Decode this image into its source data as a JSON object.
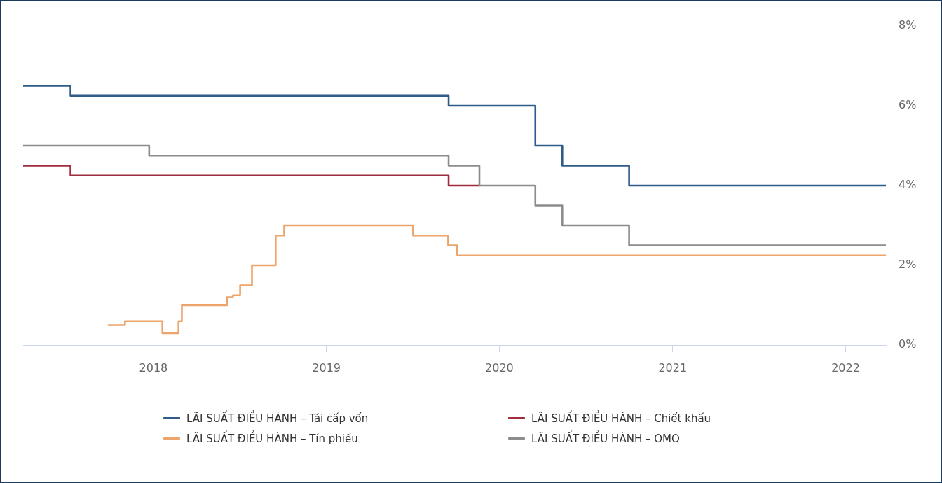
{
  "chart_data": {
    "type": "step",
    "series": [
      {
        "name": "LÃI SUẤT ĐIỀU HÀNH – Tái cấp vốn",
        "color": "#2f5b88",
        "x": [
          "2017-04-01",
          "2017-07-10",
          "2019-09-16",
          "2020-03-17",
          "2020-05-13",
          "2020-10-01",
          "2022-03-27"
        ],
        "values": [
          6.5,
          6.25,
          6,
          5,
          4.5,
          4,
          4
        ]
      },
      {
        "name": "LÃI SUẤT ĐIỀU HÀNH – Chiết khấu",
        "color": "#a02c3d",
        "x": [
          "2017-04-01",
          "2017-07-10",
          "2019-09-16",
          "2019-11-20"
        ],
        "values": [
          4.5,
          4.25,
          4,
          4
        ]
      },
      {
        "name": "LÃI SUẤT ĐIỀU HÀNH – Tín phiếu",
        "color": "#eca46b",
        "x": [
          "2017-09-28",
          "2017-11-02",
          "2018-01-20",
          "2018-02-23",
          "2018-03-02",
          "2018-06-05",
          "2018-06-18",
          "2018-07-03",
          "2018-07-28",
          "2018-09-16",
          "2018-10-04",
          "2019-07-03",
          "2019-09-15",
          "2019-10-04",
          "2022-03-27"
        ],
        "values": [
          0.5,
          0.6,
          0.3,
          0.6,
          1,
          1.2,
          1.25,
          1.5,
          2,
          2.75,
          3,
          2.75,
          2.5,
          2.25,
          2.25
        ]
      },
      {
        "name": "LÃI SUẤT ĐIỀU HÀNH – OMO",
        "color": "#8c8c8c",
        "x": [
          "2017-04-01",
          "2017-12-23",
          "2019-09-16",
          "2019-11-20",
          "2020-03-17",
          "2020-05-13",
          "2020-10-01",
          "2022-03-27"
        ],
        "values": [
          5,
          4.75,
          4.5,
          4,
          3.5,
          3,
          2.5,
          2.5
        ]
      }
    ],
    "xlim": [
      "2017-04-01",
      "2022-03-27"
    ],
    "xticks": [
      "2018",
      "2019",
      "2020",
      "2021",
      "2022"
    ],
    "ylim": [
      0,
      8
    ],
    "yticks": [
      {
        "value": 0,
        "label": "0%"
      },
      {
        "value": 2,
        "label": "2%"
      },
      {
        "value": 4,
        "label": "4%"
      },
      {
        "value": 6,
        "label": "6%"
      },
      {
        "value": 8,
        "label": "8%"
      }
    ],
    "legend": "bottom"
  }
}
